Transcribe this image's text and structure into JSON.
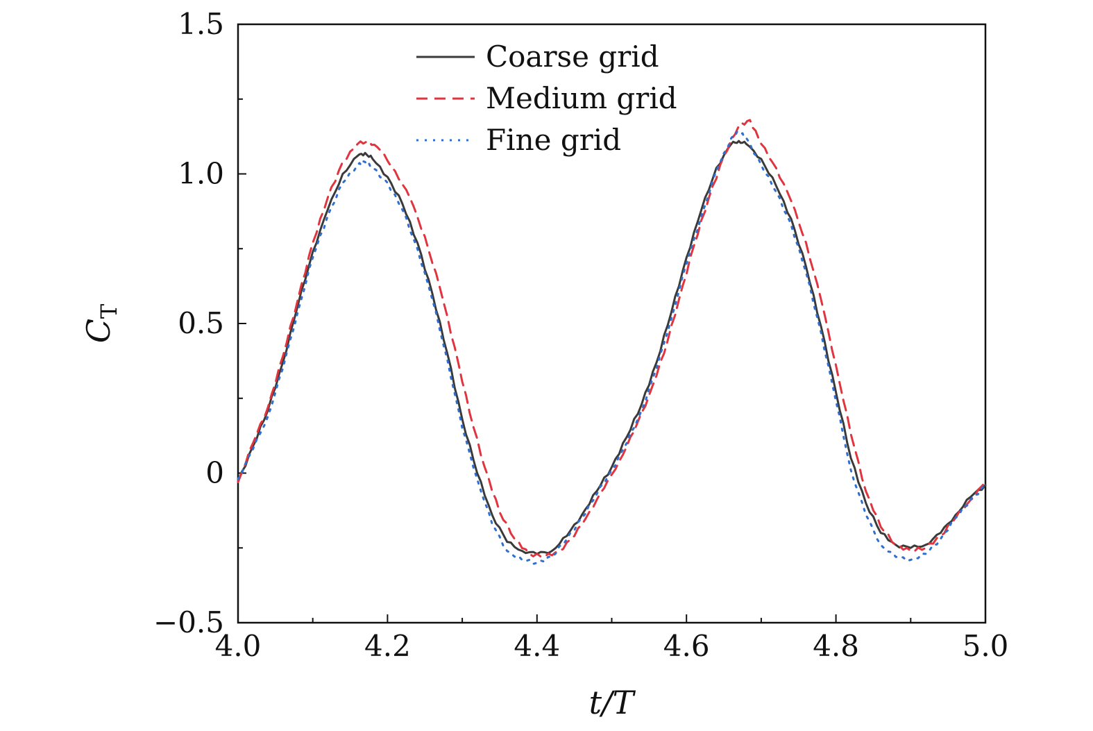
{
  "chart_data": {
    "type": "line",
    "xlabel": "t/T",
    "ylabel_main": "C",
    "ylabel_sub": "T",
    "xlim": [
      4.0,
      5.0
    ],
    "ylim": [
      -0.5,
      1.5
    ],
    "x_ticks": [
      4.0,
      4.2,
      4.4,
      4.6,
      4.8,
      5.0
    ],
    "x_tick_labels": [
      "4.0",
      "4.2",
      "4.4",
      "4.6",
      "4.8",
      "5.0"
    ],
    "y_ticks": [
      -0.5,
      0,
      0.5,
      1.0,
      1.5
    ],
    "y_tick_labels": [
      "−0.5",
      "0",
      "0.5",
      "1.0",
      "1.5"
    ],
    "grid": false,
    "legend_position": "top-center",
    "series": [
      {
        "name": "Coarse grid",
        "color": "#3a3a3a",
        "style": "solid",
        "x": [
          4.0,
          4.02,
          4.04,
          4.06,
          4.08,
          4.1,
          4.12,
          4.14,
          4.16,
          4.17,
          4.18,
          4.2,
          4.22,
          4.24,
          4.26,
          4.28,
          4.3,
          4.32,
          4.34,
          4.36,
          4.38,
          4.4,
          4.42,
          4.44,
          4.46,
          4.48,
          4.5,
          4.52,
          4.54,
          4.56,
          4.58,
          4.6,
          4.62,
          4.64,
          4.66,
          4.67,
          4.68,
          4.7,
          4.72,
          4.74,
          4.76,
          4.78,
          4.8,
          4.82,
          4.84,
          4.86,
          4.88,
          4.9,
          4.92,
          4.94,
          4.96,
          4.98,
          5.0
        ],
        "y": [
          -0.03,
          0.09,
          0.21,
          0.37,
          0.56,
          0.74,
          0.88,
          1.0,
          1.06,
          1.07,
          1.05,
          0.99,
          0.9,
          0.77,
          0.6,
          0.4,
          0.18,
          0.0,
          -0.14,
          -0.23,
          -0.26,
          -0.27,
          -0.26,
          -0.21,
          -0.14,
          -0.06,
          0.02,
          0.12,
          0.23,
          0.37,
          0.54,
          0.72,
          0.88,
          1.02,
          1.1,
          1.11,
          1.1,
          1.05,
          0.96,
          0.85,
          0.69,
          0.49,
          0.27,
          0.05,
          -0.1,
          -0.2,
          -0.24,
          -0.25,
          -0.24,
          -0.2,
          -0.14,
          -0.08,
          -0.04
        ]
      },
      {
        "name": "Medium grid",
        "color": "#e0343f",
        "style": "dashed",
        "x": [
          4.0,
          4.02,
          4.04,
          4.06,
          4.08,
          4.1,
          4.12,
          4.14,
          4.16,
          4.175,
          4.19,
          4.21,
          4.23,
          4.25,
          4.27,
          4.29,
          4.31,
          4.33,
          4.35,
          4.37,
          4.39,
          4.41,
          4.43,
          4.45,
          4.47,
          4.49,
          4.51,
          4.53,
          4.55,
          4.57,
          4.59,
          4.61,
          4.63,
          4.65,
          4.67,
          4.685,
          4.7,
          4.72,
          4.74,
          4.76,
          4.78,
          4.8,
          4.82,
          4.84,
          4.86,
          4.88,
          4.9,
          4.92,
          4.94,
          4.96,
          4.98,
          5.0
        ],
        "y": [
          -0.03,
          0.1,
          0.22,
          0.39,
          0.58,
          0.77,
          0.92,
          1.04,
          1.1,
          1.11,
          1.08,
          1.01,
          0.92,
          0.79,
          0.62,
          0.42,
          0.2,
          0.02,
          -0.13,
          -0.22,
          -0.27,
          -0.28,
          -0.26,
          -0.21,
          -0.13,
          -0.05,
          0.04,
          0.14,
          0.26,
          0.4,
          0.58,
          0.76,
          0.92,
          1.06,
          1.16,
          1.18,
          1.1,
          1.02,
          0.91,
          0.77,
          0.58,
          0.36,
          0.13,
          -0.06,
          -0.18,
          -0.24,
          -0.26,
          -0.25,
          -0.21,
          -0.15,
          -0.09,
          -0.03
        ]
      },
      {
        "name": "Fine grid",
        "color": "#2f6fd0",
        "style": "dotted",
        "x": [
          4.0,
          4.02,
          4.04,
          4.06,
          4.08,
          4.1,
          4.12,
          4.14,
          4.16,
          4.17,
          4.18,
          4.2,
          4.22,
          4.24,
          4.26,
          4.28,
          4.3,
          4.32,
          4.34,
          4.36,
          4.38,
          4.4,
          4.42,
          4.44,
          4.46,
          4.48,
          4.5,
          4.52,
          4.54,
          4.56,
          4.58,
          4.6,
          4.62,
          4.64,
          4.66,
          4.67,
          4.68,
          4.7,
          4.72,
          4.74,
          4.76,
          4.78,
          4.8,
          4.82,
          4.84,
          4.86,
          4.88,
          4.9,
          4.92,
          4.94,
          4.96,
          4.98,
          5.0
        ],
        "y": [
          -0.02,
          0.08,
          0.19,
          0.35,
          0.54,
          0.72,
          0.86,
          0.97,
          1.03,
          1.04,
          1.02,
          0.97,
          0.88,
          0.75,
          0.58,
          0.38,
          0.15,
          -0.02,
          -0.17,
          -0.26,
          -0.29,
          -0.3,
          -0.28,
          -0.22,
          -0.15,
          -0.07,
          0.01,
          0.1,
          0.21,
          0.35,
          0.52,
          0.7,
          0.86,
          1.01,
          1.12,
          1.14,
          1.12,
          1.03,
          0.94,
          0.83,
          0.67,
          0.47,
          0.24,
          0.01,
          -0.14,
          -0.24,
          -0.28,
          -0.29,
          -0.27,
          -0.22,
          -0.15,
          -0.09,
          -0.04
        ]
      }
    ]
  }
}
